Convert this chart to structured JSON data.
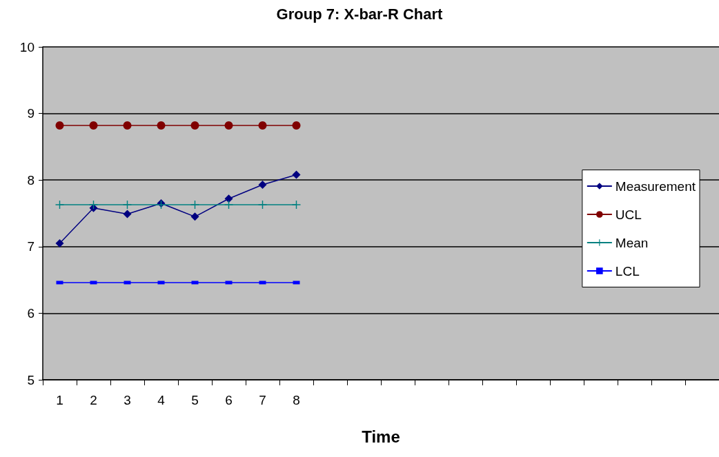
{
  "chart_data": {
    "type": "line",
    "title": "Group 7: X-bar-R Chart",
    "xlabel": "Time",
    "categories": [
      "1",
      "2",
      "3",
      "4",
      "5",
      "6",
      "7",
      "8",
      null,
      null,
      null,
      null,
      null,
      null,
      null,
      null,
      null,
      null,
      null,
      null
    ],
    "series": [
      {
        "name": "Measurement",
        "color": "#000080",
        "marker": "diamond",
        "values": [
          7.05,
          7.58,
          7.49,
          7.65,
          7.45,
          7.72,
          7.93,
          8.08,
          null,
          null,
          null,
          null,
          null,
          null,
          null,
          null,
          null,
          null,
          null,
          null
        ]
      },
      {
        "name": "UCL",
        "color": "#800000",
        "marker": "circle",
        "values": [
          8.82,
          8.82,
          8.82,
          8.82,
          8.82,
          8.82,
          8.82,
          8.82,
          null,
          null,
          null,
          null,
          null,
          null,
          null,
          null,
          null,
          null,
          null,
          null
        ]
      },
      {
        "name": "Mean",
        "color": "#008080",
        "marker": "cross",
        "values": [
          7.63,
          7.63,
          7.63,
          7.63,
          7.63,
          7.63,
          7.63,
          7.63,
          null,
          null,
          null,
          null,
          null,
          null,
          null,
          null,
          null,
          null,
          null,
          null
        ]
      },
      {
        "name": "LCL",
        "color": "#0000ff",
        "marker": "square",
        "values": [
          6.46,
          6.46,
          6.46,
          6.46,
          6.46,
          6.46,
          6.46,
          6.46,
          null,
          null,
          null,
          null,
          null,
          null,
          null,
          null,
          null,
          null,
          null,
          null
        ]
      }
    ],
    "ylim": [
      5,
      10
    ],
    "yticks": [
      5,
      6,
      7,
      8,
      9,
      10
    ],
    "grid": "y",
    "legend": "right",
    "line_style": "solid"
  }
}
